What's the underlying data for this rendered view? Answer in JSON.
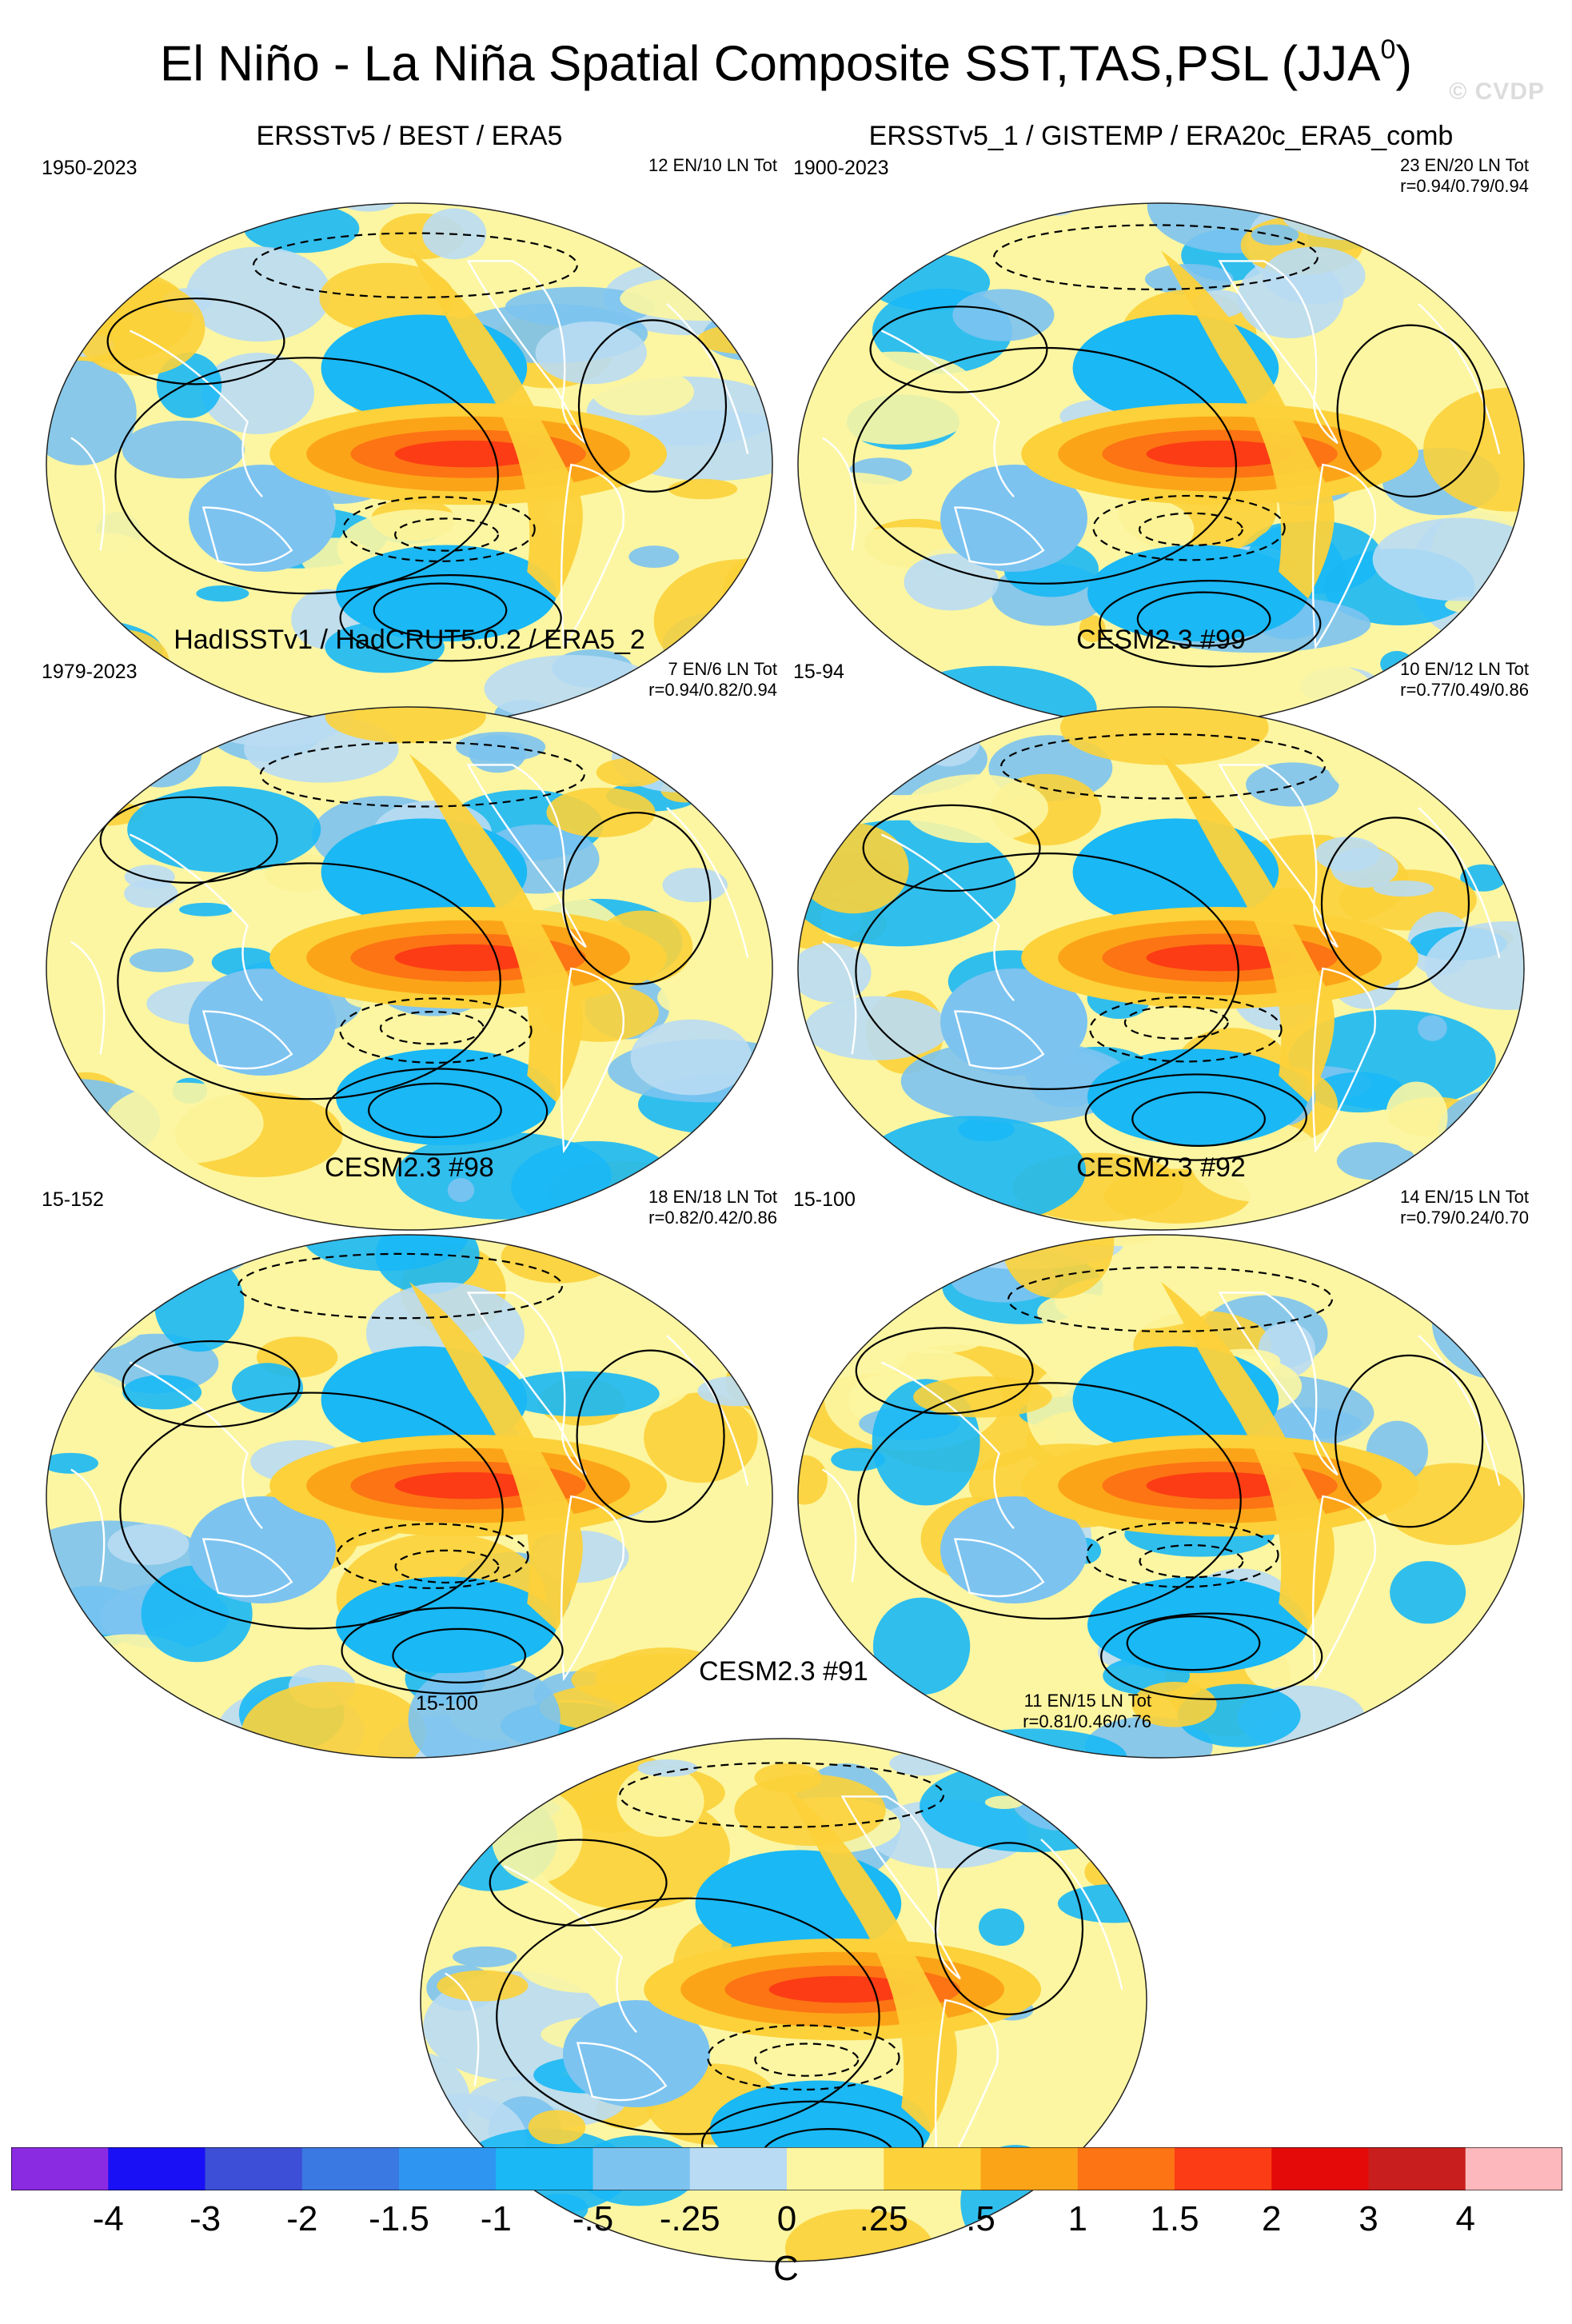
{
  "title": "El Niño - La Niña Spatial Composite SST,TAS,PSL (JJA",
  "title_superscript": "0",
  "title_close": ")",
  "watermark": "© CVDP",
  "panels": [
    {
      "title": "ERSSTv5 / BEST / ERA5",
      "period": "1950-2023",
      "stats1": "12 EN/10 LN Tot",
      "stats2": ""
    },
    {
      "title": "ERSSTv5_1 / GISTEMP / ERA20c_ERA5_comb",
      "period": "1900-2023",
      "stats1": "23 EN/20 LN Tot",
      "stats2": "r=0.94/0.79/0.94"
    },
    {
      "title": "HadISSTv1 / HadCRUT5.0.2 / ERA5_2",
      "period": "1979-2023",
      "stats1": "7 EN/6 LN Tot",
      "stats2": "r=0.94/0.82/0.94"
    },
    {
      "title": "CESM2.3 #99",
      "period": "15-94",
      "stats1": "10 EN/12 LN Tot",
      "stats2": "r=0.77/0.49/0.86"
    },
    {
      "title": "CESM2.3 #98",
      "period": "15-152",
      "stats1": "18 EN/18 LN Tot",
      "stats2": "r=0.82/0.42/0.86"
    },
    {
      "title": "CESM2.3 #92",
      "period": "15-100",
      "stats1": "14 EN/15 LN Tot",
      "stats2": "r=0.79/0.24/0.70"
    },
    {
      "title": "CESM2.3 #91",
      "period": "15-100",
      "stats1": "11 EN/15 LN Tot",
      "stats2": "r=0.81/0.46/0.76"
    }
  ],
  "chart_data": {
    "type": "heatmap",
    "title": "El Niño - La Niña Spatial Composite SST,TAS,PSL (JJA0)",
    "projection": "Robinson, Pacific-centered",
    "variables": [
      "SST",
      "TAS",
      "PSL (contours)"
    ],
    "season": "JJA",
    "colorbar": {
      "unit": "C",
      "levels": [
        "-4",
        "-3",
        "-2",
        "-1.5",
        "-1",
        "-.5",
        "-.25",
        "0",
        ".25",
        ".5",
        "1",
        "1.5",
        "2",
        "3",
        "4"
      ],
      "colors": [
        "#8a2be2",
        "#1a10f5",
        "#3c4fd6",
        "#3a78e2",
        "#2e96f0",
        "#1ab8f5",
        "#7cc3f0",
        "#b9dbf3",
        "#fcf6a2",
        "#fcd13a",
        "#fca418",
        "#fc7414",
        "#fc3c14",
        "#e40a0a",
        "#c81e1e",
        "#fcb8bc"
      ]
    },
    "panels": [
      {
        "name": "ERSSTv5 / BEST / ERA5",
        "years": "1950-2023",
        "el_nino_events": 12,
        "la_nina_events": 10,
        "pattern_corr": null
      },
      {
        "name": "ERSSTv5_1 / GISTEMP / ERA20c_ERA5_comb",
        "years": "1900-2023",
        "el_nino_events": 23,
        "la_nina_events": 20,
        "pattern_corr": [
          0.94,
          0.79,
          0.94
        ]
      },
      {
        "name": "HadISSTv1 / HadCRUT5.0.2 / ERA5_2",
        "years": "1979-2023",
        "el_nino_events": 7,
        "la_nina_events": 6,
        "pattern_corr": [
          0.94,
          0.82,
          0.94
        ]
      },
      {
        "name": "CESM2.3 #99",
        "years": "15-94",
        "el_nino_events": 10,
        "la_nina_events": 12,
        "pattern_corr": [
          0.77,
          0.49,
          0.86
        ]
      },
      {
        "name": "CESM2.3 #98",
        "years": "15-152",
        "el_nino_events": 18,
        "la_nina_events": 18,
        "pattern_corr": [
          0.82,
          0.42,
          0.86
        ]
      },
      {
        "name": "CESM2.3 #92",
        "years": "15-100",
        "el_nino_events": 14,
        "la_nina_events": 15,
        "pattern_corr": [
          0.79,
          0.24,
          0.7
        ]
      },
      {
        "name": "CESM2.3 #91",
        "years": "15-100",
        "el_nino_events": 11,
        "la_nina_events": 15,
        "pattern_corr": [
          0.81,
          0.46,
          0.76
        ]
      }
    ]
  }
}
